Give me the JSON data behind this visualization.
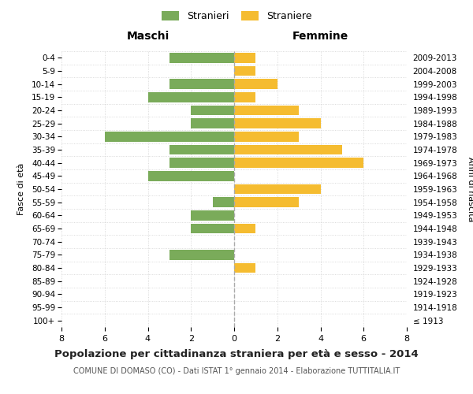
{
  "age_groups": [
    "100+",
    "95-99",
    "90-94",
    "85-89",
    "80-84",
    "75-79",
    "70-74",
    "65-69",
    "60-64",
    "55-59",
    "50-54",
    "45-49",
    "40-44",
    "35-39",
    "30-34",
    "25-29",
    "20-24",
    "15-19",
    "10-14",
    "5-9",
    "0-4"
  ],
  "birth_years": [
    "≤ 1913",
    "1914-1918",
    "1919-1923",
    "1924-1928",
    "1929-1933",
    "1934-1938",
    "1939-1943",
    "1944-1948",
    "1949-1953",
    "1954-1958",
    "1959-1963",
    "1964-1968",
    "1969-1973",
    "1974-1978",
    "1979-1983",
    "1984-1988",
    "1989-1993",
    "1994-1998",
    "1999-2003",
    "2004-2008",
    "2009-2013"
  ],
  "maschi": [
    0,
    0,
    0,
    0,
    0,
    3,
    0,
    2,
    2,
    1,
    0,
    4,
    3,
    3,
    6,
    2,
    2,
    4,
    3,
    0,
    3
  ],
  "femmine": [
    0,
    0,
    0,
    0,
    1,
    0,
    0,
    1,
    0,
    3,
    4,
    0,
    6,
    5,
    3,
    4,
    3,
    1,
    2,
    1,
    1
  ],
  "maschi_color": "#7aab5a",
  "femmine_color": "#f5bc30",
  "background_color": "#ffffff",
  "grid_color": "#d0d0d0",
  "dashed_line_color": "#aaaaaa",
  "title": "Popolazione per cittadinanza straniera per età e sesso - 2014",
  "subtitle": "COMUNE DI DOMASO (CO) - Dati ISTAT 1° gennaio 2014 - Elaborazione TUTTITALIA.IT",
  "header_left": "Maschi",
  "header_right": "Femmine",
  "ylabel_left": "Fasce di età",
  "ylabel_right": "Anni di nascita",
  "legend_maschi": "Stranieri",
  "legend_femmine": "Straniere",
  "xlim": 8,
  "bar_height": 0.75
}
